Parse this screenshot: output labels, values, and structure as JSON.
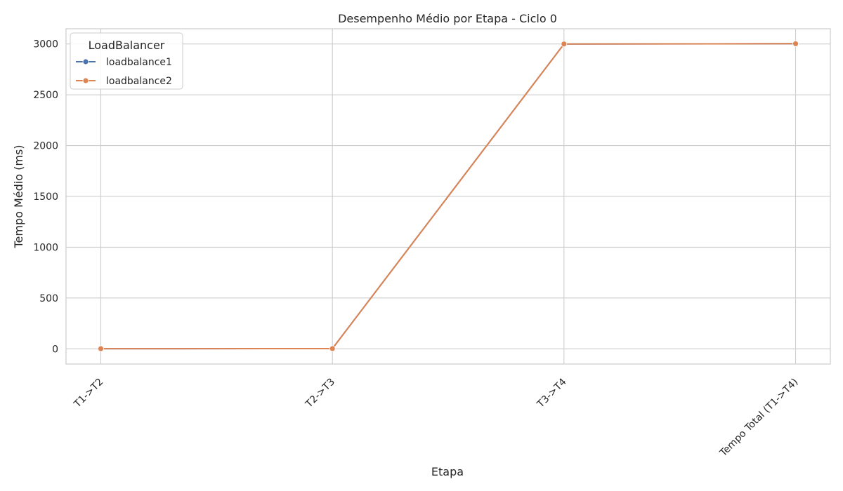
{
  "chart_data": {
    "type": "line",
    "title": "Desempenho Médio por Etapa - Ciclo 0",
    "xlabel": "Etapa",
    "ylabel": "Tempo Médio (ms)",
    "categories": [
      "T1->T2",
      "T2->T3",
      "T3->T4",
      "Tempo Total (T1->T4)"
    ],
    "ylim": [
      -150,
      3150
    ],
    "yticks": [
      0,
      500,
      1000,
      1500,
      2000,
      2500,
      3000
    ],
    "grid": true,
    "legend": {
      "title": "LoadBalancer",
      "position": "top-left"
    },
    "series": [
      {
        "name": "loadbalance1",
        "color": "#4c72b0",
        "values": [
          1,
          2,
          3000,
          3003
        ]
      },
      {
        "name": "loadbalance2",
        "color": "#dd8452",
        "values": [
          1,
          2,
          3000,
          3003
        ]
      }
    ]
  }
}
